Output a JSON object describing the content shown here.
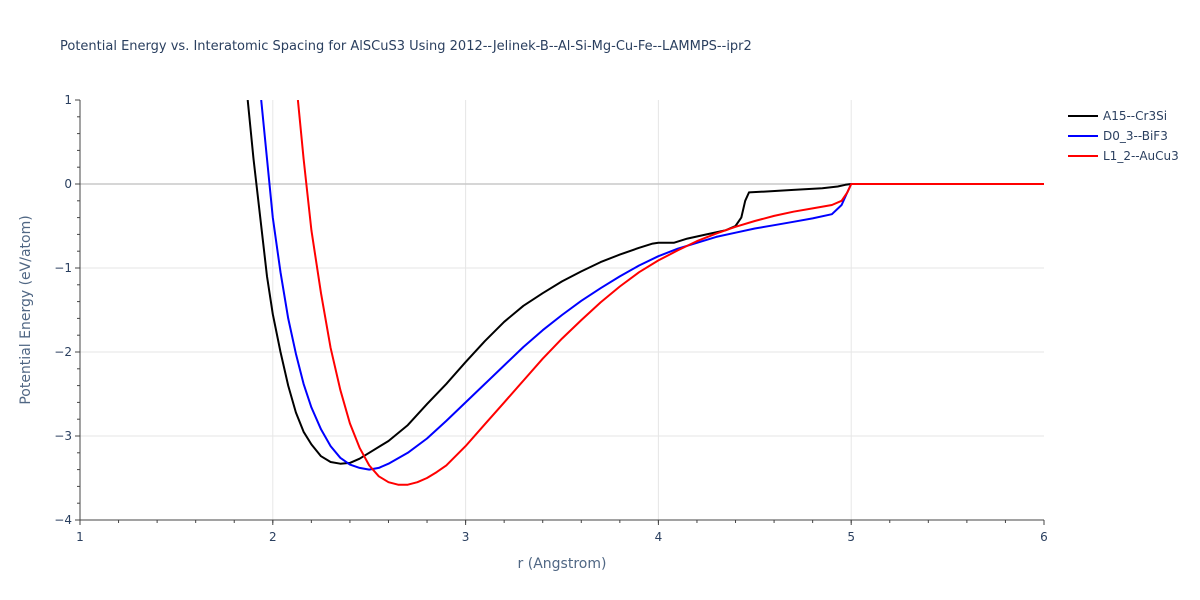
{
  "chart_data": {
    "type": "line",
    "title": "Potential Energy vs. Interatomic Spacing for AlSCuS3 Using 2012--Jelinek-B--Al-Si-Mg-Cu-Fe--LAMMPS--ipr2",
    "xlabel": "r (Angstrom)",
    "ylabel": "Potential Energy (eV/atom)",
    "xlim": [
      1,
      6
    ],
    "ylim": [
      -4,
      1
    ],
    "x_ticks": [
      "1",
      "2",
      "3",
      "4",
      "5",
      "6"
    ],
    "y_ticks": [
      "1",
      "0",
      "−1",
      "−2",
      "−3",
      "−4"
    ],
    "grid": true,
    "legend_position": "top-right",
    "series": [
      {
        "name": "A15--Cr3Si",
        "color": "#000000",
        "x": [
          1.87,
          1.9,
          1.93,
          1.97,
          2.0,
          2.04,
          2.08,
          2.12,
          2.16,
          2.2,
          2.25,
          2.3,
          2.35,
          2.4,
          2.45,
          2.5,
          2.6,
          2.7,
          2.8,
          2.9,
          3.0,
          3.1,
          3.2,
          3.3,
          3.4,
          3.5,
          3.6,
          3.7,
          3.8,
          3.9,
          3.97,
          4.0,
          4.04,
          4.08,
          4.15,
          4.25,
          4.35,
          4.4,
          4.43,
          4.45,
          4.47,
          4.55,
          4.7,
          4.85,
          4.93,
          4.97,
          5.0,
          6.0
        ],
        "y": [
          1.0,
          0.3,
          -0.3,
          -1.1,
          -1.55,
          -2.0,
          -2.4,
          -2.72,
          -2.95,
          -3.1,
          -3.24,
          -3.31,
          -3.33,
          -3.32,
          -3.27,
          -3.2,
          -3.06,
          -2.87,
          -2.62,
          -2.38,
          -2.12,
          -1.87,
          -1.64,
          -1.45,
          -1.3,
          -1.16,
          -1.04,
          -0.93,
          -0.84,
          -0.76,
          -0.71,
          -0.7,
          -0.7,
          -0.7,
          -0.65,
          -0.6,
          -0.55,
          -0.5,
          -0.4,
          -0.2,
          -0.1,
          -0.09,
          -0.07,
          -0.05,
          -0.03,
          -0.01,
          0.0,
          0.0
        ]
      },
      {
        "name": "D0_3--BiF3",
        "color": "#0000ff",
        "x": [
          1.94,
          1.97,
          2.0,
          2.04,
          2.08,
          2.12,
          2.16,
          2.2,
          2.25,
          2.3,
          2.35,
          2.4,
          2.45,
          2.5,
          2.55,
          2.6,
          2.7,
          2.8,
          2.9,
          3.0,
          3.1,
          3.2,
          3.3,
          3.4,
          3.5,
          3.6,
          3.7,
          3.8,
          3.9,
          4.0,
          4.1,
          4.2,
          4.3,
          4.4,
          4.5,
          4.6,
          4.7,
          4.8,
          4.9,
          4.95,
          4.98,
          5.0,
          6.0
        ],
        "y": [
          1.0,
          0.3,
          -0.4,
          -1.05,
          -1.6,
          -2.02,
          -2.38,
          -2.66,
          -2.92,
          -3.12,
          -3.26,
          -3.34,
          -3.38,
          -3.4,
          -3.38,
          -3.33,
          -3.2,
          -3.03,
          -2.82,
          -2.6,
          -2.38,
          -2.16,
          -1.94,
          -1.74,
          -1.56,
          -1.39,
          -1.24,
          -1.1,
          -0.97,
          -0.86,
          -0.77,
          -0.7,
          -0.63,
          -0.58,
          -0.53,
          -0.49,
          -0.45,
          -0.41,
          -0.36,
          -0.25,
          -0.1,
          0.0,
          0.0
        ]
      },
      {
        "name": "L1_2--AuCu3",
        "color": "#ff0000",
        "x": [
          2.13,
          2.16,
          2.2,
          2.25,
          2.3,
          2.35,
          2.4,
          2.45,
          2.5,
          2.55,
          2.6,
          2.65,
          2.7,
          2.75,
          2.8,
          2.85,
          2.9,
          3.0,
          3.1,
          3.2,
          3.3,
          3.4,
          3.5,
          3.6,
          3.7,
          3.8,
          3.9,
          4.0,
          4.1,
          4.2,
          4.3,
          4.4,
          4.5,
          4.6,
          4.7,
          4.8,
          4.9,
          4.95,
          4.98,
          5.0,
          6.0
        ],
        "y": [
          1.0,
          0.3,
          -0.55,
          -1.3,
          -1.95,
          -2.45,
          -2.85,
          -3.14,
          -3.35,
          -3.48,
          -3.55,
          -3.58,
          -3.58,
          -3.55,
          -3.5,
          -3.43,
          -3.35,
          -3.12,
          -2.86,
          -2.6,
          -2.34,
          -2.08,
          -1.84,
          -1.62,
          -1.41,
          -1.22,
          -1.05,
          -0.91,
          -0.79,
          -0.68,
          -0.59,
          -0.51,
          -0.44,
          -0.38,
          -0.33,
          -0.29,
          -0.25,
          -0.2,
          -0.1,
          0.0,
          0.0
        ]
      }
    ]
  }
}
